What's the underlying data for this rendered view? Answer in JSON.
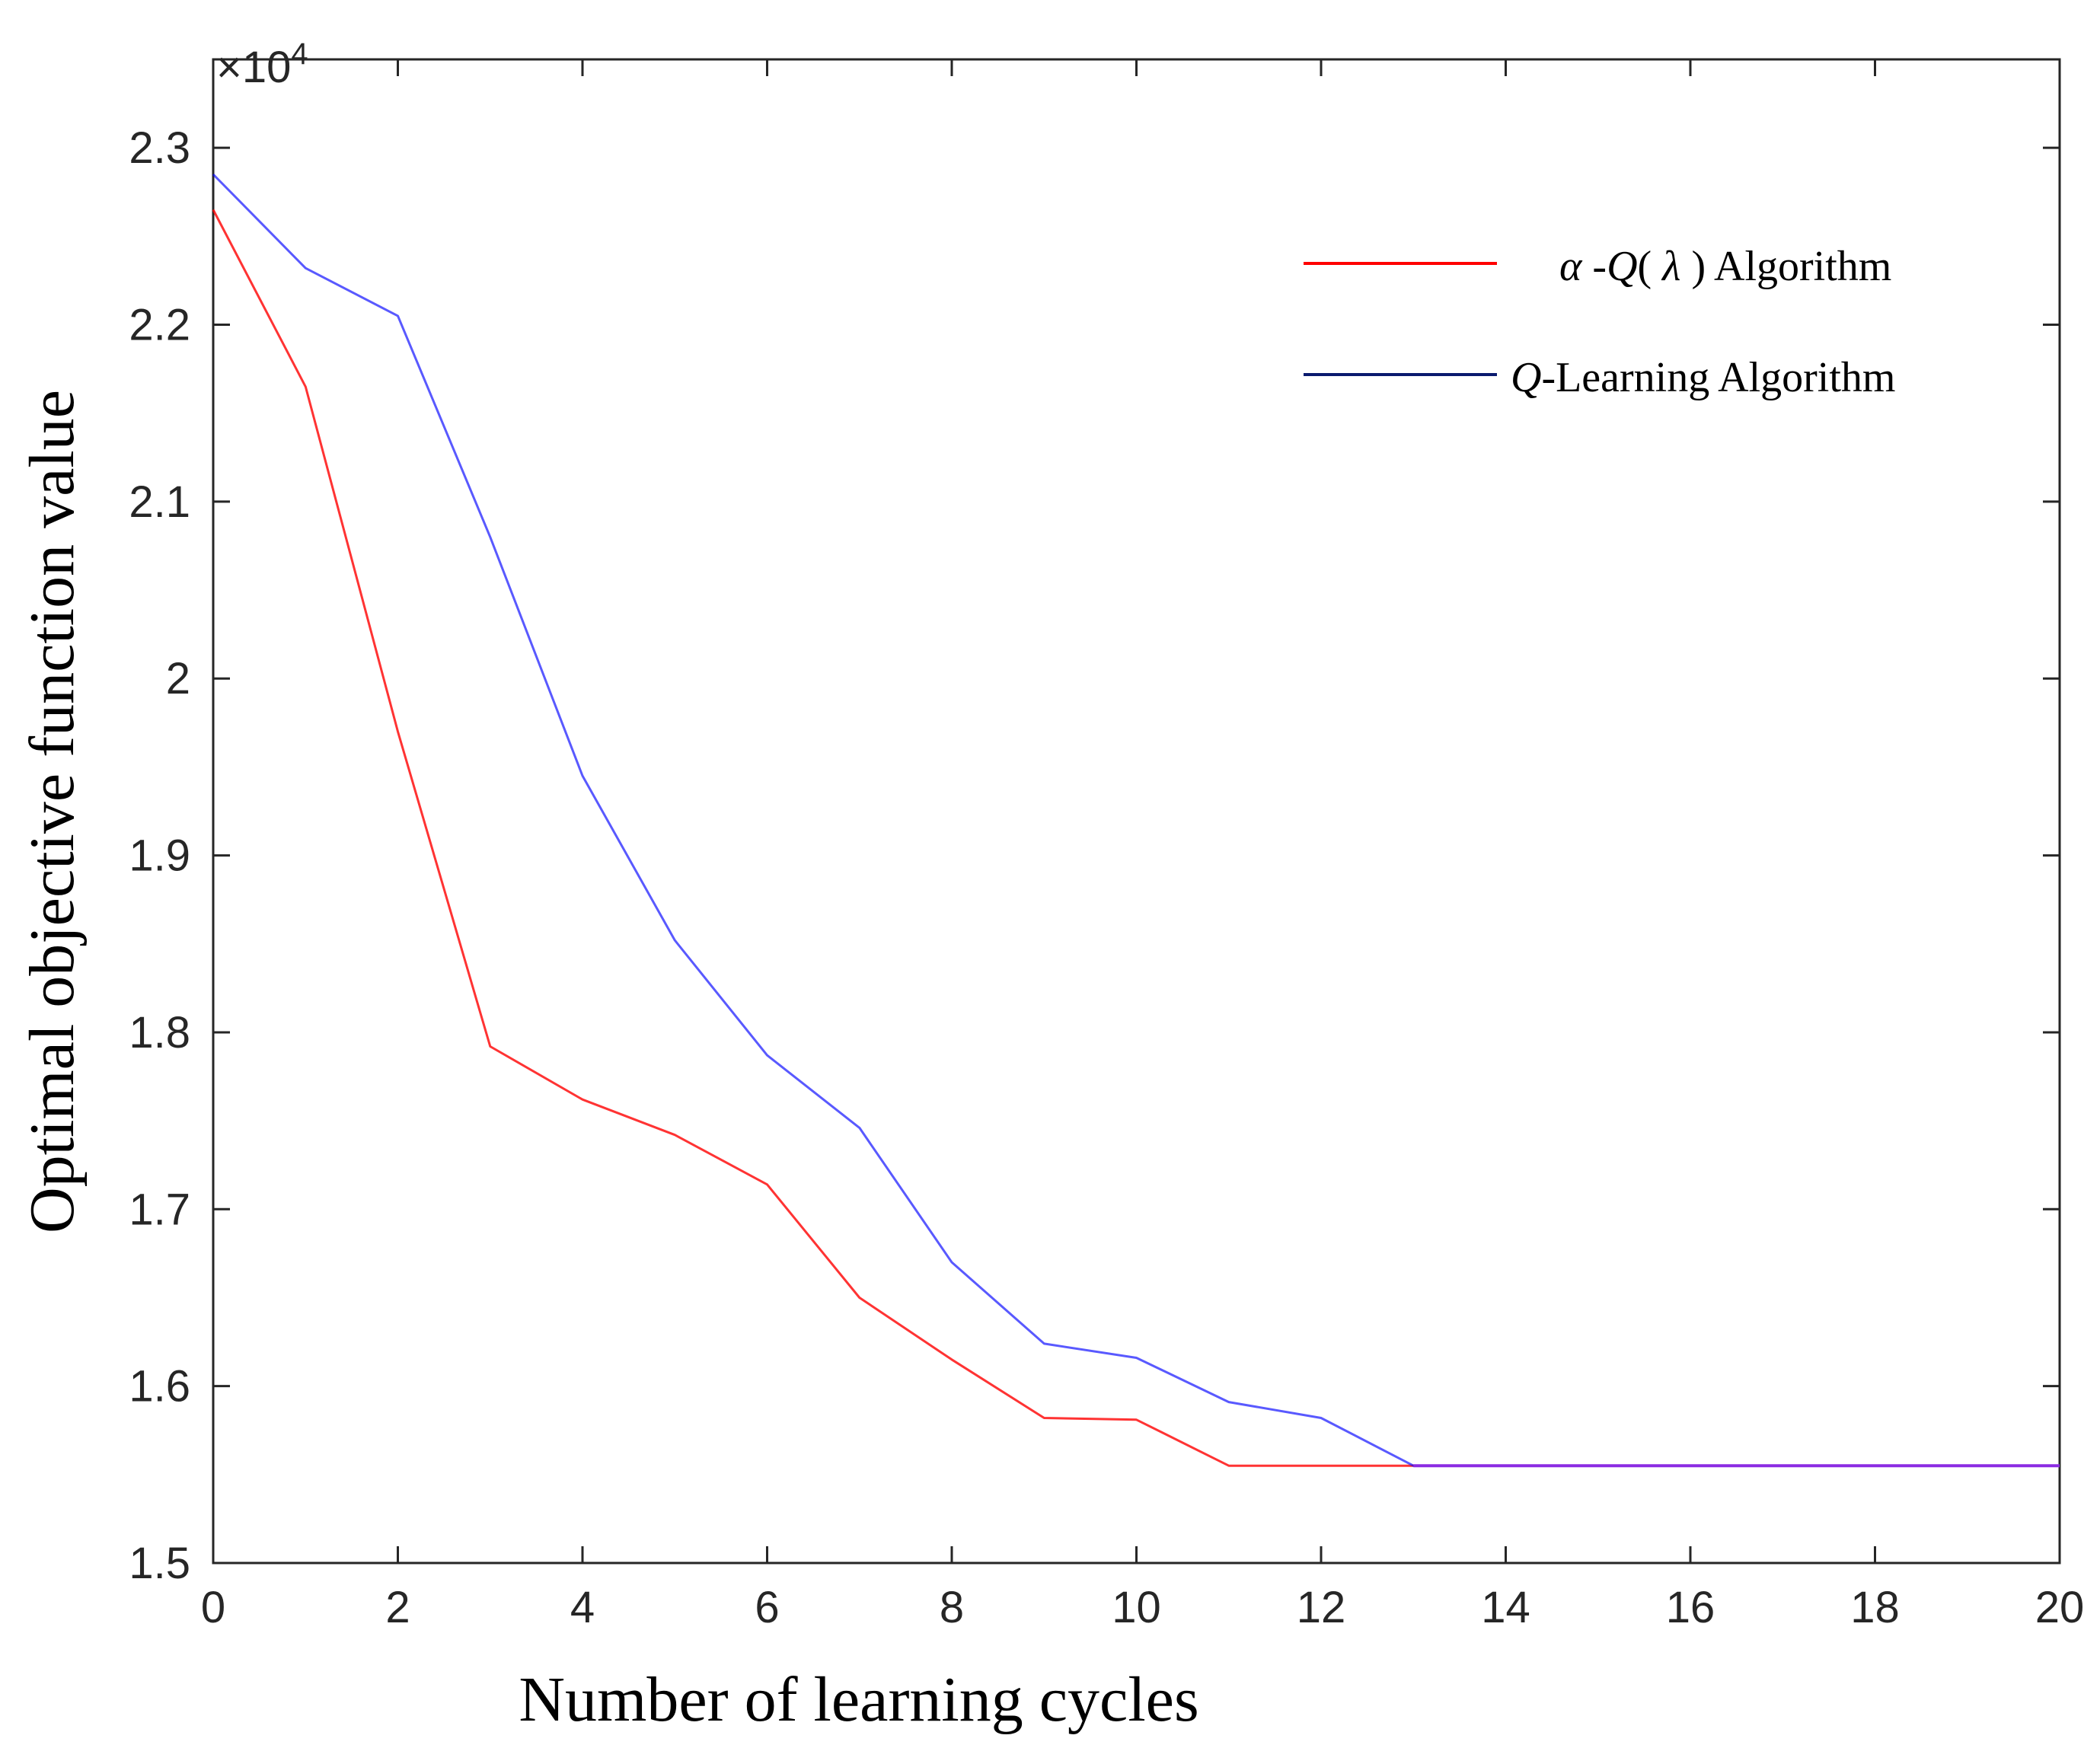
{
  "chart_data": {
    "type": "line",
    "xlabel": "Number of learning cycles",
    "ylabel": "Optimal objective function value",
    "xlim": [
      0,
      20
    ],
    "ylim": [
      15000,
      23500
    ],
    "y_multiplier_label": "×10",
    "y_multiplier_exponent": "4",
    "x_ticks": [
      0,
      2,
      4,
      6,
      8,
      10,
      12,
      14,
      16,
      18,
      20
    ],
    "x_tick_labels": [
      "0",
      "2",
      "4",
      "6",
      "8",
      "10",
      "12",
      "14",
      "16",
      "18",
      "20"
    ],
    "y_ticks": [
      15000,
      16000,
      17000,
      18000,
      19000,
      20000,
      21000,
      22000,
      23000
    ],
    "y_tick_labels": [
      "1.5",
      "1.6",
      "1.7",
      "1.8",
      "1.9",
      "2",
      "2.1",
      "2.2",
      "2.3"
    ],
    "x": [
      0,
      1,
      2,
      3,
      4,
      5,
      6,
      7,
      8,
      9,
      10,
      11,
      12,
      13,
      14,
      15,
      16,
      17,
      18,
      19,
      20
    ],
    "series": [
      {
        "name": "α-Q(λ) Algorithm",
        "legend_parts": [
          "α",
          " -",
          "Q",
          "( ",
          "λ",
          " ) Algorithm"
        ],
        "color": "#ff0000",
        "values": [
          22650,
          21650,
          19700,
          17920,
          17620,
          17420,
          17140,
          16500,
          16150,
          15820,
          15810,
          15550,
          15550,
          15550,
          15550,
          15550,
          15550,
          15550,
          15550,
          15550,
          15550
        ]
      },
      {
        "name": "Q-Learning Algorithm",
        "legend_parts": [
          "Q",
          "-Learning Algorithm"
        ],
        "color": "#0000ff",
        "legend_color": "#0a1a6e",
        "values": [
          22850,
          22320,
          22050,
          20800,
          19450,
          18520,
          17870,
          17460,
          16700,
          16240,
          16160,
          15910,
          15820,
          15550,
          15550,
          15550,
          15550,
          15550,
          15550,
          15550,
          15550
        ]
      }
    ],
    "overlap_color": "#8b2be2",
    "legend_position": "top-right",
    "grid": false
  }
}
